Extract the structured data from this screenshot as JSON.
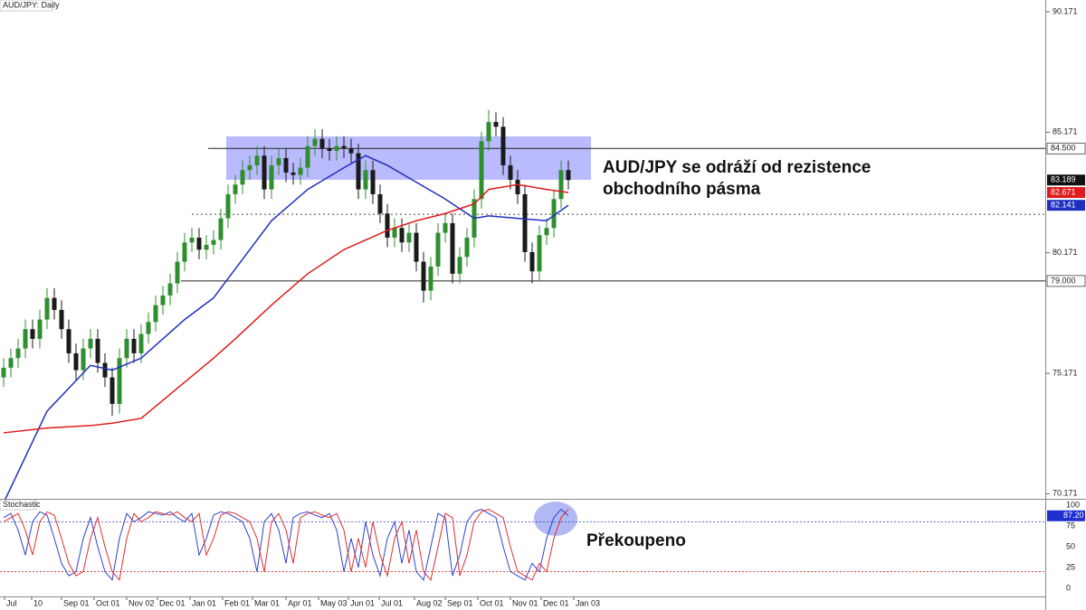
{
  "chart_data": {
    "type": "candlestick",
    "title": "AUD/JPY: Daily",
    "annotation": [
      "AUD/JPY se odráží od rezistence",
      "obchodního pásma"
    ],
    "up_color": "#2f8f2f",
    "down_color": "#1a1a1a",
    "xlim": [
      -0.5,
      143.875
    ],
    "ylim": [
      69.96,
      90.66
    ],
    "yticks": [
      90.171,
      85.171,
      80.171,
      75.171,
      70.171
    ],
    "xticks": [
      {
        "value": 0.125,
        "label": "Jul"
      },
      {
        "value": 3.875,
        "label": "10"
      },
      {
        "value": 8,
        "label": "Sep 01"
      },
      {
        "value": 12.5,
        "label": "Oct 01"
      },
      {
        "value": 17,
        "label": "Nov 02"
      },
      {
        "value": 21.25,
        "label": "Dec 01"
      },
      {
        "value": 25.75,
        "label": "Jan 01"
      },
      {
        "value": 30.25,
        "label": "Feb 01"
      },
      {
        "value": 34.375,
        "label": "Mar 01"
      },
      {
        "value": 39,
        "label": "Apr 01"
      },
      {
        "value": 43.5,
        "label": "May 03"
      },
      {
        "value": 47.625,
        "label": "Jun 01"
      },
      {
        "value": 51.875,
        "label": "Jul 01"
      },
      {
        "value": 56.75,
        "label": "Aug 02"
      },
      {
        "value": 61,
        "label": "Sep 01"
      },
      {
        "value": 65.5,
        "label": "Oct 01"
      },
      {
        "value": 70,
        "label": "Nov 01"
      },
      {
        "value": 74.25,
        "label": "Dec 01"
      },
      {
        "value": 78.75,
        "label": "Jan 03"
      }
    ],
    "open": [
      75.0,
      75.4,
      75.8,
      76.2,
      77.0,
      76.6,
      77.4,
      78.3,
      77.8,
      77.0,
      76.0,
      75.3,
      76.2,
      76.6,
      75.6,
      75.0,
      73.9,
      75.8,
      76.6,
      76.0,
      76.8,
      77.3,
      78.0,
      78.4,
      78.9,
      79.8,
      80.6,
      80.8,
      80.3,
      80.5,
      80.7,
      81.6,
      82.6,
      83.0,
      83.6,
      83.8,
      84.2,
      82.8,
      83.8,
      84.1,
      83.5,
      83.4,
      83.7,
      84.6,
      84.9,
      84.5,
      84.4,
      84.6,
      84.5,
      84.3,
      82.8,
      83.6,
      82.6,
      81.8,
      80.8,
      81.2,
      80.6,
      81.0,
      79.8,
      78.6,
      79.6,
      81.0,
      81.4,
      79.3,
      80.0,
      80.8,
      82.4,
      84.8,
      85.6,
      85.4,
      83.8,
      83.2,
      82.6,
      80.2,
      79.4,
      80.9,
      81.2,
      82.4,
      83.6
    ],
    "high": [
      75.8,
      76.2,
      76.6,
      77.4,
      77.4,
      77.8,
      78.7,
      78.7,
      78.2,
      77.4,
      76.4,
      76.6,
      77.0,
      77.0,
      76.0,
      75.4,
      76.2,
      77.0,
      77.0,
      77.2,
      77.7,
      78.4,
      78.8,
      79.3,
      80.2,
      81.0,
      81.2,
      81.2,
      80.9,
      81.1,
      82.0,
      83.0,
      83.4,
      84.0,
      84.2,
      84.6,
      84.6,
      84.2,
      84.5,
      84.5,
      83.9,
      84.1,
      85.0,
      85.3,
      85.3,
      84.9,
      85.0,
      85.0,
      84.9,
      84.7,
      84.0,
      84.0,
      83.0,
      82.2,
      81.6,
      81.6,
      81.4,
      81.4,
      80.2,
      80.0,
      81.4,
      81.8,
      81.8,
      80.4,
      81.2,
      82.8,
      85.2,
      86.1,
      86.0,
      85.8,
      84.2,
      83.6,
      83.0,
      80.6,
      81.3,
      81.6,
      82.8,
      84.0,
      84.0
    ],
    "low": [
      74.6,
      75.0,
      75.4,
      75.8,
      76.2,
      76.2,
      77.0,
      77.4,
      76.6,
      75.6,
      74.9,
      74.9,
      75.8,
      75.2,
      74.6,
      73.4,
      73.5,
      75.4,
      75.6,
      75.6,
      76.4,
      76.9,
      77.6,
      78.0,
      78.5,
      79.4,
      80.2,
      79.9,
      79.9,
      80.1,
      80.3,
      81.2,
      82.2,
      82.6,
      83.2,
      83.4,
      82.4,
      82.4,
      83.4,
      83.1,
      83.0,
      83.0,
      83.3,
      84.2,
      84.1,
      84.0,
      84.0,
      84.1,
      83.9,
      82.4,
      82.4,
      82.2,
      81.4,
      80.4,
      80.4,
      80.2,
      80.2,
      79.4,
      78.1,
      78.2,
      79.2,
      80.6,
      78.9,
      78.9,
      79.6,
      80.4,
      82.0,
      84.4,
      85.0,
      83.4,
      82.8,
      82.2,
      79.8,
      78.9,
      79.0,
      80.5,
      80.8,
      82.0,
      82.8
    ],
    "close": [
      75.4,
      75.8,
      76.2,
      77.0,
      76.6,
      77.4,
      78.3,
      77.8,
      77.0,
      76.0,
      75.3,
      76.2,
      76.6,
      75.6,
      75.0,
      73.9,
      75.8,
      76.6,
      76.0,
      76.8,
      77.3,
      78.0,
      78.4,
      78.9,
      79.8,
      80.6,
      80.8,
      80.3,
      80.5,
      80.7,
      81.6,
      82.6,
      83.0,
      83.6,
      83.8,
      84.2,
      82.8,
      83.8,
      84.1,
      83.5,
      83.4,
      83.7,
      84.6,
      84.9,
      84.5,
      84.4,
      84.6,
      84.5,
      84.3,
      82.8,
      83.6,
      82.6,
      81.8,
      80.8,
      81.2,
      80.6,
      81.0,
      79.8,
      78.6,
      79.6,
      81.0,
      81.4,
      79.3,
      80.0,
      80.8,
      82.4,
      84.8,
      85.6,
      85.4,
      83.8,
      83.2,
      82.6,
      80.2,
      79.4,
      80.9,
      81.2,
      82.4,
      83.6,
      83.189
    ],
    "moving_averages": [
      {
        "color": "#1f2fbf",
        "x": [
          0,
          6,
          12,
          15,
          19,
          25,
          29,
          32,
          37,
          42,
          47,
          50,
          53,
          57,
          61,
          65,
          67,
          71,
          75,
          78
        ],
        "values": [
          69.8,
          73.6,
          75.5,
          75.3,
          75.8,
          77.4,
          78.3,
          79.5,
          81.5,
          82.8,
          83.7,
          84.2,
          83.8,
          83.1,
          82.4,
          81.6,
          81.7,
          81.6,
          81.5,
          82.141
        ]
      },
      {
        "color": "#e01b1b",
        "x": [
          0,
          6,
          12,
          15,
          19,
          25,
          29,
          32,
          37,
          42,
          47,
          50,
          53,
          57,
          61,
          65,
          67,
          71,
          75,
          78
        ],
        "values": [
          72.7,
          72.9,
          73.0,
          73.1,
          73.3,
          74.8,
          75.8,
          76.6,
          78.0,
          79.3,
          80.3,
          80.7,
          81.1,
          81.5,
          81.8,
          82.2,
          82.8,
          83.0,
          82.8,
          82.671
        ]
      }
    ],
    "levels": [
      {
        "value": 84.5,
        "label": "84.500"
      },
      {
        "value": 79,
        "label": "79.000"
      }
    ],
    "dotted_level": 81.77,
    "zone": [
      83.2,
      85.0
    ],
    "zone_color": "#8c8cff",
    "stochastic": {
      "title": "Stochastic",
      "annotation": "Překoupeno",
      "ylim": [
        -9.8,
        106.5
      ],
      "yticks": [
        100,
        75,
        50,
        25,
        0
      ],
      "overbought": 80,
      "oversold": 20,
      "last": {
        "value": 87.2,
        "label": "87.20"
      },
      "series": [
        {
          "color": "#3040d0",
          "values": [
            85,
            90,
            70,
            40,
            80,
            92,
            88,
            60,
            30,
            15,
            20,
            60,
            85,
            50,
            20,
            10,
            60,
            90,
            80,
            85,
            92,
            90,
            88,
            92,
            85,
            80,
            90,
            40,
            60,
            88,
            92,
            90,
            85,
            80,
            60,
            20,
            80,
            90,
            70,
            30,
            85,
            90,
            92,
            88,
            85,
            90,
            70,
            20,
            60,
            25,
            80,
            40,
            15,
            60,
            80,
            30,
            70,
            20,
            10,
            50,
            90,
            85,
            15,
            40,
            80,
            92,
            95,
            90,
            85,
            50,
            20,
            15,
            10,
            30,
            20,
            60,
            85,
            95,
            87.2
          ]
        },
        {
          "color": "#e03030",
          "values": [
            80,
            85,
            90,
            70,
            40,
            80,
            92,
            88,
            60,
            30,
            15,
            20,
            60,
            85,
            50,
            20,
            10,
            60,
            90,
            80,
            85,
            92,
            90,
            88,
            92,
            85,
            80,
            90,
            40,
            60,
            88,
            92,
            90,
            85,
            80,
            60,
            20,
            80,
            90,
            70,
            30,
            85,
            90,
            92,
            88,
            85,
            90,
            70,
            20,
            60,
            25,
            80,
            40,
            15,
            60,
            80,
            30,
            70,
            20,
            10,
            50,
            90,
            85,
            15,
            40,
            80,
            92,
            95,
            90,
            85,
            50,
            20,
            15,
            10,
            30,
            20,
            60,
            85,
            95
          ]
        }
      ]
    }
  }
}
